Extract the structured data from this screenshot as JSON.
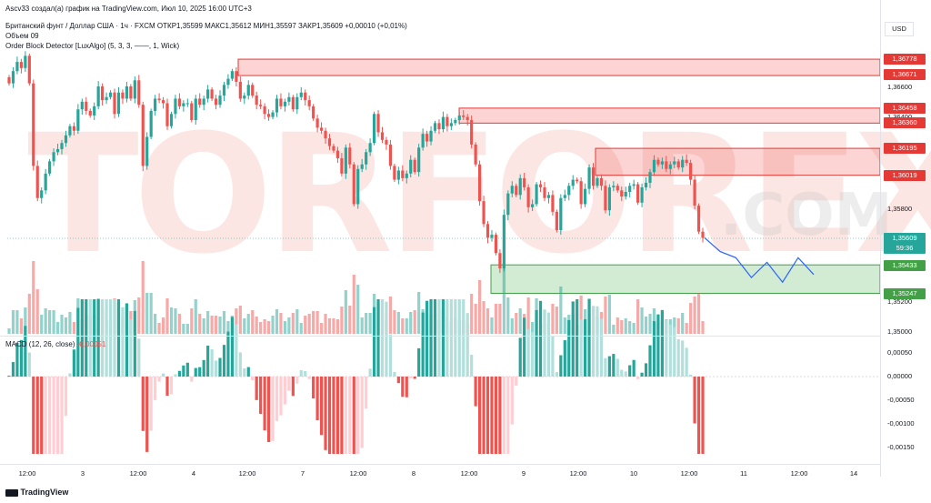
{
  "header": {
    "line1": "Ascv33 создал(а) график на TradingView.com, Июл 10, 2025 16:00 UTC+3",
    "line2": "Британский фунт / Доллар США · 1ч · FXCM  ОТКР1,35599  МАКС1,35612  МИН1,35597  ЗАКР1,35609  +0,00010 (+0,01%)",
    "line3": "Объем  09",
    "line4": "Order Block Detector [LuxAlgo] (5, 3, 3, ——, 1, Wick)"
  },
  "currency_button": "USD",
  "macd_label": "MACD (12, 26, close)",
  "macd_value": "-0,00051",
  "footer_logo": "TradingView",
  "watermark": "TORFOREX",
  "watermark_domain": ".COM",
  "colors": {
    "bull": "#26a69a",
    "bear": "#ef5350",
    "bear_zone_fill": "rgba(239,83,80,0.25)",
    "bear_zone_border": "#e53935",
    "bull_zone_fill": "rgba(76,175,80,0.25)",
    "bull_zone_border": "#43a047",
    "forecast": "#2962ff"
  },
  "price_axis": {
    "ticks": [
      "1,36600",
      "1,36400",
      "1,35800",
      "1,35200",
      "1,35000"
    ],
    "labels": [
      {
        "text": "1,36778",
        "kind": "bear"
      },
      {
        "text": "1,36671",
        "kind": "bear"
      },
      {
        "text": "1,36458",
        "kind": "bear"
      },
      {
        "text": "1,36360",
        "kind": "bear"
      },
      {
        "text": "1,36195",
        "kind": "bear"
      },
      {
        "text": "1,36019",
        "kind": "bear"
      },
      {
        "text": "1,35609",
        "kind": "current"
      },
      {
        "text": "59:36",
        "kind": "countdown"
      },
      {
        "text": "1,35433",
        "kind": "bull"
      },
      {
        "text": "1,35247",
        "kind": "bull"
      }
    ]
  },
  "macd_axis": {
    "ticks": [
      "0,00050",
      "0,00000",
      "-0,00050",
      "-0,00100",
      "-0,00150"
    ]
  },
  "time_axis": {
    "ticks": [
      "12:00",
      "3",
      "12:00",
      "4",
      "12:00",
      "7",
      "12:00",
      "8",
      "12:00",
      "9",
      "12:00",
      "10",
      "12:00",
      "11",
      "12:00",
      "14"
    ]
  },
  "chart_data": {
    "type": "candlestick",
    "symbol": "Британский фунт / Доллар США",
    "timeframe": "1ч",
    "ohlc_last": {
      "open": 1.35599,
      "high": 1.35612,
      "low": 1.35597,
      "close": 1.35609
    },
    "candle_closes": [
      1.3662,
      1.367,
      1.3676,
      1.3672,
      1.368,
      1.3662,
      1.3608,
      1.3587,
      1.3592,
      1.3603,
      1.3611,
      1.3617,
      1.3619,
      1.3623,
      1.3628,
      1.3634,
      1.3631,
      1.3645,
      1.365,
      1.3644,
      1.3641,
      1.3647,
      1.366,
      1.3651,
      1.3653,
      1.3656,
      1.3642,
      1.3656,
      1.3652,
      1.366,
      1.3652,
      1.3664,
      1.3648,
      1.3608,
      1.3627,
      1.3644,
      1.3652,
      1.3651,
      1.3649,
      1.3634,
      1.3642,
      1.3652,
      1.3647,
      1.3649,
      1.3649,
      1.3638,
      1.3652,
      1.3648,
      1.3652,
      1.3658,
      1.3652,
      1.3648,
      1.3654,
      1.3661,
      1.3665,
      1.367,
      1.3663,
      1.3652,
      1.3654,
      1.3661,
      1.3654,
      1.3648,
      1.3647,
      1.3642,
      1.364,
      1.3643,
      1.3652,
      1.3647,
      1.365,
      1.3653,
      1.3645,
      1.3653,
      1.3656,
      1.3651,
      1.3647,
      1.3639,
      1.3633,
      1.3631,
      1.3626,
      1.3621,
      1.3618,
      1.3613,
      1.3603,
      1.362,
      1.3609,
      1.3583,
      1.3606,
      1.3609,
      1.3617,
      1.3623,
      1.3642,
      1.363,
      1.3625,
      1.3622,
      1.3608,
      1.3599,
      1.3605,
      1.36,
      1.3603,
      1.3612,
      1.3604,
      1.362,
      1.3629,
      1.3624,
      1.3631,
      1.3636,
      1.3632,
      1.364,
      1.3634,
      1.3636,
      1.3638,
      1.3641,
      1.364,
      1.3638,
      1.3622,
      1.3609,
      1.3585,
      1.357,
      1.3561,
      1.3563,
      1.3551,
      1.3541,
      1.3576,
      1.359,
      1.3595,
      1.3589,
      1.36,
      1.3594,
      1.3581,
      1.3583,
      1.3596,
      1.3594,
      1.3587,
      1.3589,
      1.3578,
      1.3566,
      1.3587,
      1.3589,
      1.3595,
      1.3599,
      1.3598,
      1.3583,
      1.3593,
      1.3607,
      1.3595,
      1.36,
      1.3595,
      1.3579,
      1.3594,
      1.3595,
      1.3592,
      1.3588,
      1.3591,
      1.3595,
      1.3596,
      1.3584,
      1.3594,
      1.3597,
      1.3604,
      1.3612,
      1.3609,
      1.3611,
      1.3606,
      1.3609,
      1.3611,
      1.3607,
      1.3612,
      1.361,
      1.3599,
      1.3582,
      1.3565,
      1.3561
    ],
    "order_blocks": [
      {
        "type": "bearish",
        "top": 1.36778,
        "bottom": 1.36671
      },
      {
        "type": "bearish",
        "top": 1.36458,
        "bottom": 1.3636
      },
      {
        "type": "bearish",
        "top": 1.36195,
        "bottom": 1.36019
      },
      {
        "type": "bullish",
        "top": 1.35433,
        "bottom": 1.35247
      }
    ],
    "forecast_path": [
      1.3561,
      1.3552,
      1.3548,
      1.3535,
      1.3545,
      1.3532,
      1.3548,
      1.3537
    ]
  }
}
